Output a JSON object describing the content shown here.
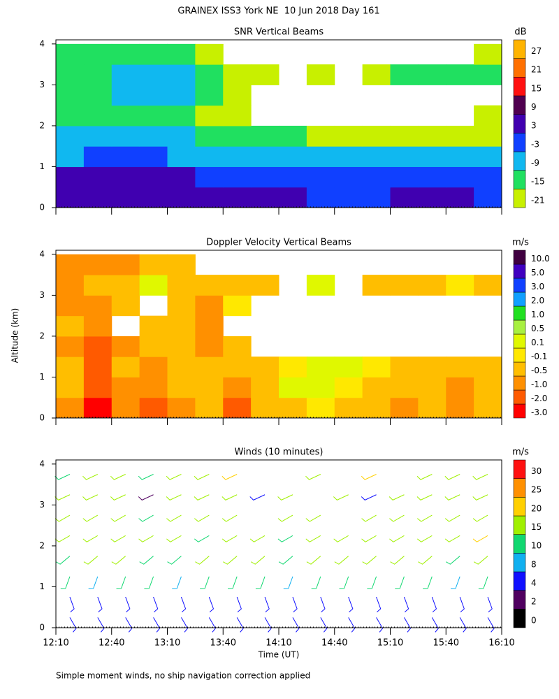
{
  "title": "GRAINEX ISS3 York NE  10 Jun 2018 Day 161",
  "y_label": "Altitude (km)",
  "x_label": "Time (UT)",
  "footnote": "Simple moment winds, no ship navigation correction applied",
  "chart_data": [
    {
      "type": "heatmap",
      "title": "SNR Vertical Beams",
      "x": [
        737.5,
        752.5,
        767.5,
        782.5,
        797.5,
        812.5,
        827.5,
        842.5,
        857.5,
        872.5,
        887.5,
        902.5,
        917.5,
        932.5,
        947.5,
        962.5
      ],
      "y": [
        0.25,
        0.75,
        1.25,
        1.75,
        2.25,
        2.75,
        3.25,
        3.75
      ],
      "values": [
        [
          5,
          6,
          7,
          6,
          5,
          4,
          4,
          3,
          3,
          2,
          2,
          2,
          3,
          4,
          3,
          2
        ],
        [
          4,
          5,
          6,
          5,
          4,
          2,
          1,
          0,
          -1,
          -1,
          -2,
          -1,
          0,
          1,
          0,
          -1
        ],
        [
          -4,
          -3,
          -2,
          -3,
          -4,
          -5,
          -6,
          -6,
          -7,
          -7,
          -8,
          -8,
          -7,
          -8,
          -8,
          -9
        ],
        [
          -8,
          -7,
          -7,
          -8,
          -9,
          -10,
          -11,
          -12,
          -14,
          -16,
          -17,
          -18,
          -18,
          -18,
          -19,
          -19
        ],
        [
          -12,
          -13,
          -14,
          -12,
          -15,
          -17,
          -19,
          null,
          null,
          null,
          null,
          null,
          null,
          null,
          null,
          -20
        ],
        [
          -11,
          -10,
          -8,
          -6,
          -9,
          -13,
          -16,
          null,
          null,
          null,
          null,
          null,
          null,
          null,
          null,
          null
        ],
        [
          -12,
          -10,
          -8,
          -4,
          -5,
          -10,
          -18,
          -20,
          null,
          -19,
          null,
          -16,
          -14,
          -12,
          -13,
          -15
        ],
        [
          -14,
          -12,
          -11,
          -10,
          -14,
          -17,
          null,
          null,
          null,
          null,
          null,
          null,
          null,
          null,
          null,
          -20
        ]
      ],
      "xlim": [
        730,
        970
      ],
      "xticks": [
        730,
        760,
        790,
        820,
        850,
        880,
        910,
        940,
        970
      ],
      "ylim": [
        0,
        4.1
      ],
      "yticks": [
        0,
        1,
        2,
        3,
        4
      ],
      "colorbar_unit": "dB",
      "colorbar_ticks": [
        -21,
        -15,
        -9,
        -3,
        3,
        9,
        15,
        21,
        27
      ],
      "colorbar_colors": [
        "#c8f000",
        "#20e060",
        "#10b8f0",
        "#1040ff",
        "#4000b0",
        "#500050",
        "#ff1010",
        "#ff7000",
        "#ffb400"
      ]
    },
    {
      "type": "heatmap",
      "title": "Doppler Velocity Vertical Beams",
      "x": [
        737.5,
        752.5,
        767.5,
        782.5,
        797.5,
        812.5,
        827.5,
        842.5,
        857.5,
        872.5,
        887.5,
        902.5,
        917.5,
        932.5,
        947.5,
        962.5
      ],
      "y": [
        0.25,
        0.75,
        1.25,
        1.75,
        2.25,
        2.75,
        3.25,
        3.75
      ],
      "values": [
        [
          -0.6,
          -2.1,
          -0.8,
          -1.2,
          -0.7,
          -0.4,
          -1.1,
          -0.5,
          -0.3,
          0.05,
          -0.2,
          -0.4,
          -0.6,
          -0.3,
          -0.8,
          -0.5
        ],
        [
          -0.4,
          -1.5,
          -0.6,
          -1.0,
          -0.5,
          -0.3,
          -0.8,
          -0.2,
          0.2,
          0.3,
          -0.05,
          -0.3,
          -0.4,
          -0.2,
          -0.6,
          -0.4
        ],
        [
          -0.3,
          -1.2,
          -0.5,
          -0.6,
          -0.4,
          -0.2,
          -0.5,
          -0.3,
          -0.1,
          0.2,
          0.3,
          0.05,
          -0.2,
          -0.3,
          -0.5,
          -0.3
        ],
        [
          -0.7,
          -1.1,
          -0.6,
          -0.3,
          -0.5,
          -0.6,
          -0.2,
          null,
          null,
          null,
          null,
          null,
          null,
          null,
          null,
          null
        ],
        [
          -0.5,
          -0.8,
          null,
          -0.4,
          -0.2,
          -0.7,
          null,
          null,
          null,
          null,
          null,
          null,
          null,
          null,
          null,
          null
        ],
        [
          -0.8,
          -0.6,
          -0.4,
          null,
          -0.3,
          -0.6,
          -0.05,
          null,
          null,
          null,
          null,
          null,
          null,
          null,
          null,
          null
        ],
        [
          -0.9,
          -0.5,
          -0.3,
          0.3,
          -0.2,
          -0.4,
          -0.3,
          -0.2,
          null,
          0.2,
          null,
          -0.2,
          -0.3,
          -0.4,
          -0.1,
          -0.5
        ],
        [
          -0.7,
          -0.6,
          -0.8,
          -0.4,
          -0.3,
          null,
          null,
          null,
          null,
          null,
          null,
          null,
          null,
          null,
          null,
          null
        ]
      ],
      "xlim": [
        730,
        970
      ],
      "xticks": [
        730,
        760,
        790,
        820,
        850,
        880,
        910,
        940,
        970
      ],
      "ylim": [
        0,
        4.1
      ],
      "yticks": [
        0,
        1,
        2,
        3,
        4
      ],
      "colorbar_unit": "m/s",
      "colorbar_ticks": [
        {
          "value": -3,
          "label": "-3.0"
        },
        {
          "value": -2,
          "label": "-2.0"
        },
        {
          "value": -1,
          "label": "-1.0"
        },
        -0.5,
        -0.1,
        0.1,
        0.5,
        {
          "value": 1,
          "label": "1.0"
        },
        {
          "value": 2,
          "label": "2.0"
        },
        {
          "value": 3,
          "label": "3.0"
        },
        {
          "value": 5,
          "label": "5.0"
        },
        {
          "value": 10,
          "label": "10.0"
        }
      ],
      "colorbar_colors": [
        "#ff0000",
        "#ff5a00",
        "#ff9000",
        "#ffbe00",
        "#ffe800",
        "#e0f800",
        "#a8f040",
        "#20e020",
        "#10a0ff",
        "#1040ff",
        "#4000c0",
        "#400040"
      ]
    },
    {
      "type": "barbs",
      "title": "Winds (10 minutes)",
      "x": [
        737.5,
        752.5,
        767.5,
        782.5,
        797.5,
        812.5,
        827.5,
        842.5,
        857.5,
        872.5,
        887.5,
        902.5,
        917.5,
        932.5,
        947.5,
        962.5
      ],
      "y": [
        0.25,
        0.75,
        1.25,
        1.75,
        2.25,
        2.75,
        3.25,
        3.75
      ],
      "values": [
        [
          5,
          4,
          5,
          6,
          4,
          5,
          5,
          4,
          5,
          6,
          5,
          4,
          5,
          5,
          6,
          5
        ],
        [
          6,
          5,
          6,
          7,
          5,
          6,
          6,
          5,
          6,
          7,
          6,
          5,
          6,
          6,
          7,
          6
        ],
        [
          10,
          9,
          11,
          10,
          9,
          10,
          11,
          10,
          9,
          11,
          10,
          10,
          11,
          10,
          9,
          11
        ],
        [
          14,
          15,
          16,
          14,
          13,
          15,
          16,
          15,
          14,
          16,
          15,
          17,
          16,
          15,
          14,
          16
        ],
        [
          15,
          16,
          17,
          16,
          15,
          14,
          16,
          15,
          14,
          15,
          16,
          17,
          16,
          15,
          16,
          21
        ],
        [
          16,
          17,
          18,
          14,
          16,
          15,
          16,
          null,
          15,
          16,
          null,
          17,
          16,
          17,
          16,
          15
        ],
        [
          17,
          18,
          19,
          3,
          17,
          16,
          18,
          4,
          17,
          null,
          16,
          5,
          17,
          18,
          16,
          17
        ],
        [
          14,
          15,
          16,
          13,
          15,
          16,
          22,
          null,
          null,
          15,
          null,
          24,
          null,
          16,
          15,
          16
        ]
      ],
      "directions": [
        150,
        160,
        200,
        230,
        240,
        240,
        245,
        245
      ],
      "xlim": [
        730,
        970
      ],
      "xticks": [
        {
          "value": 730,
          "label": "12:10"
        },
        {
          "value": 760,
          "label": "12:40"
        },
        {
          "value": 790,
          "label": "13:10"
        },
        {
          "value": 820,
          "label": "13:40"
        },
        {
          "value": 850,
          "label": "14:10"
        },
        {
          "value": 880,
          "label": "14:40"
        },
        {
          "value": 910,
          "label": "15:10"
        },
        {
          "value": 940,
          "label": "15:40"
        },
        {
          "value": 970,
          "label": "16:10"
        }
      ],
      "ylim": [
        0,
        4.1
      ],
      "yticks": [
        0,
        1,
        2,
        3,
        4
      ],
      "colorbar_unit": "m/s",
      "colorbar_ticks": [
        0,
        2,
        4,
        8,
        10,
        15,
        20,
        25,
        30
      ],
      "colorbar_colors": [
        "#000000",
        "#500060",
        "#1010ff",
        "#10b0f0",
        "#10d870",
        "#a0f000",
        "#ffd000",
        "#ff9000",
        "#ff1010"
      ]
    }
  ]
}
